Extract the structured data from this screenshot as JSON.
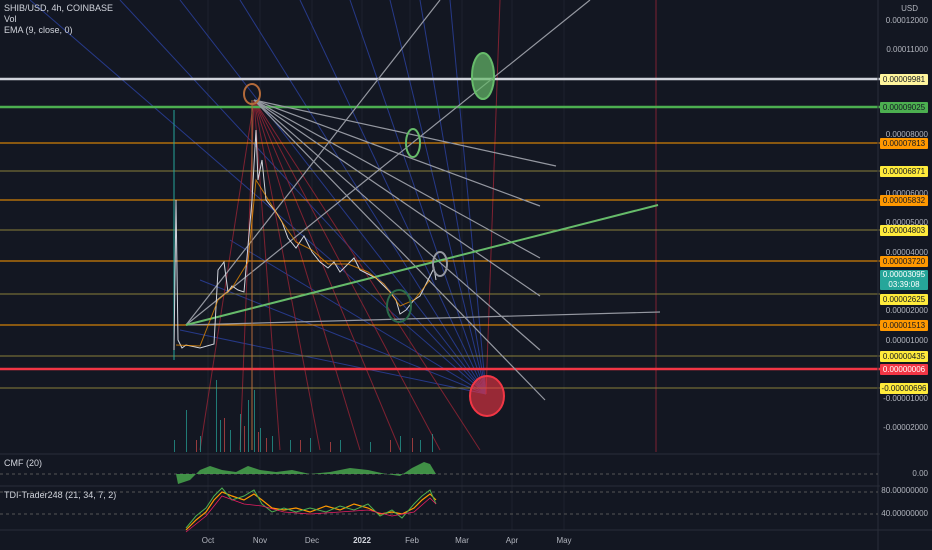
{
  "header": {
    "symbol": "SHIB/USD, 4h, COINBASE",
    "vol": "Vol",
    "ema": "EMA (9, close, 0)"
  },
  "currency": "USD",
  "price_axis_labels": [
    "0.00012000",
    "0.00011000",
    "0.00008000",
    "0.00006000",
    "0.00005000",
    "0.00004000",
    "0.00002000",
    "0.00001000",
    "-0.00001000",
    "-0.00002000"
  ],
  "price_tags": [
    {
      "value": "0.00009981",
      "color": "#fff59d"
    },
    {
      "value": "0.00009025",
      "color": "#4caf50"
    },
    {
      "value": "0.00007813",
      "color": "#ff9800"
    },
    {
      "value": "0.00006871",
      "color": "#ffeb3b"
    },
    {
      "value": "0.00005832",
      "color": "#ff9800"
    },
    {
      "value": "0.00004803",
      "color": "#ffeb3b"
    },
    {
      "value": "0.00003720",
      "color": "#ff9800"
    },
    {
      "value": "0.00002625",
      "color": "#ffeb3b"
    },
    {
      "value": "0.00001513",
      "color": "#ff9800"
    },
    {
      "value": "0.00000435",
      "color": "#ffeb3b"
    },
    {
      "value": "0.00000006",
      "color": "#f23645"
    },
    {
      "value": "-0.00000696",
      "color": "#ffeb3b"
    }
  ],
  "current_price": {
    "value": "0.00003095",
    "countdown": "03:39:08",
    "color": "#26a69a"
  },
  "cmf": {
    "label": "CMF (20)",
    "axis_value": "0.00"
  },
  "tdi": {
    "label": "TDI-Trader248 (21, 34, 7, 2)",
    "axis_values": [
      "80.00000000",
      "40.00000000"
    ]
  },
  "time_axis": [
    {
      "label": "Oct",
      "bold": false
    },
    {
      "label": "Nov",
      "bold": false
    },
    {
      "label": "Dec",
      "bold": false
    },
    {
      "label": "2022",
      "bold": true
    },
    {
      "label": "Feb",
      "bold": false
    },
    {
      "label": "Mar",
      "bold": false
    },
    {
      "label": "Apr",
      "bold": false
    },
    {
      "label": "May",
      "bold": false
    }
  ]
}
